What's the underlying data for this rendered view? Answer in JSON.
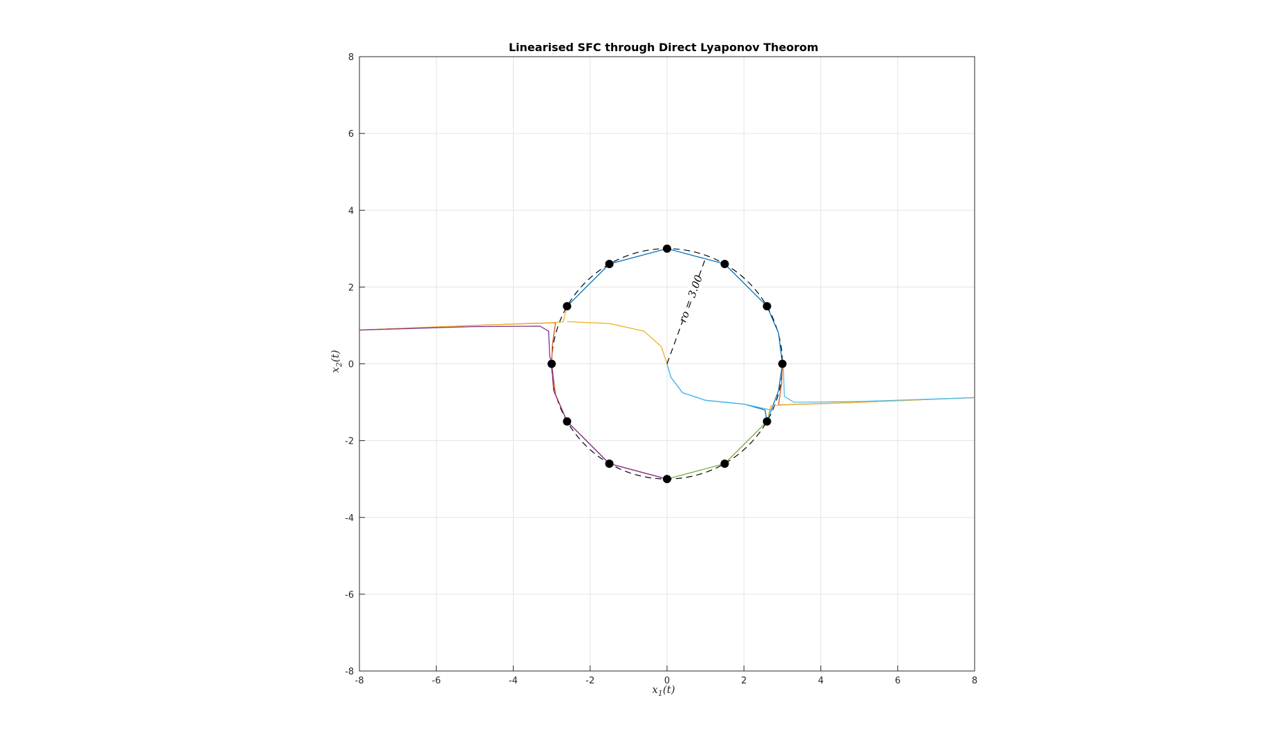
{
  "chart_data": {
    "type": "line",
    "title": "Linearised SFC through Direct Lyaponov Theorom",
    "xlabel": "x_1(t)",
    "ylabel": "x_2(t)",
    "xlim": [
      -8,
      8
    ],
    "ylim": [
      -8,
      8
    ],
    "xticks": [
      "-8",
      "-6",
      "-4",
      "-2",
      "0",
      "2",
      "4",
      "6",
      "8"
    ],
    "yticks": [
      "-8",
      "-6",
      "-4",
      "-2",
      "0",
      "2",
      "4",
      "6",
      "8"
    ],
    "grid": true,
    "circle": {
      "radius": 3.0,
      "style": "dashed",
      "color": "#000000"
    },
    "radius_annotation": "ro = 3.00",
    "markers": {
      "color": "#000000",
      "points": [
        [
          3.0,
          0.0
        ],
        [
          2.6,
          1.5
        ],
        [
          1.5,
          2.6
        ],
        [
          0.0,
          3.0
        ],
        [
          -1.5,
          2.6
        ],
        [
          -2.6,
          1.5
        ],
        [
          -3.0,
          0.0
        ],
        [
          -2.6,
          -1.5
        ],
        [
          -1.5,
          -2.6
        ],
        [
          0.0,
          -3.0
        ],
        [
          1.5,
          -2.6
        ],
        [
          2.6,
          -1.5
        ]
      ]
    },
    "series": [
      {
        "color": "#0072BD",
        "points": [
          [
            2.6,
            1.5
          ],
          [
            2.9,
            0.8
          ],
          [
            3.0,
            0.0
          ],
          [
            2.9,
            -0.7
          ],
          [
            2.6,
            -1.5
          ],
          [
            2.55,
            -1.2
          ],
          [
            2.0,
            -1.05
          ],
          [
            1.0,
            -0.95
          ],
          [
            0.4,
            -0.75
          ],
          [
            0.1,
            -0.35
          ],
          [
            0.0,
            0.0
          ]
        ]
      },
      {
        "color": "#0072BD",
        "points": [
          [
            -2.6,
            1.5
          ],
          [
            -1.5,
            2.6
          ],
          [
            0.0,
            3.0
          ],
          [
            1.5,
            2.6
          ],
          [
            2.6,
            1.5
          ]
        ]
      },
      {
        "color": "#D95319",
        "points": [
          [
            -8.0,
            0.88
          ],
          [
            -5.0,
            1.0
          ],
          [
            -3.6,
            1.05
          ],
          [
            -2.9,
            1.07
          ],
          [
            -2.98,
            0.5
          ],
          [
            -3.0,
            0.0
          ],
          [
            -2.9,
            -0.8
          ],
          [
            -2.6,
            -1.5
          ],
          [
            -1.5,
            -2.6
          ],
          [
            0.0,
            -3.0
          ]
        ]
      },
      {
        "color": "#D95319",
        "points": [
          [
            8.0,
            -0.88
          ],
          [
            5.0,
            -1.0
          ],
          [
            3.6,
            -1.05
          ],
          [
            2.9,
            -1.07
          ],
          [
            2.98,
            -0.5
          ],
          [
            3.0,
            0.0
          ]
        ]
      },
      {
        "color": "#EDB120",
        "points": [
          [
            -8.0,
            0.88
          ],
          [
            -5.0,
            1.0
          ],
          [
            -3.2,
            1.06
          ],
          [
            -2.7,
            1.09
          ],
          [
            -2.6,
            1.5
          ]
        ]
      },
      {
        "color": "#EDB120",
        "points": [
          [
            -2.6,
            1.1
          ],
          [
            -1.5,
            1.05
          ],
          [
            -0.6,
            0.85
          ],
          [
            -0.15,
            0.45
          ],
          [
            0.0,
            0.0
          ]
        ]
      },
      {
        "color": "#EDB120",
        "points": [
          [
            8.0,
            -0.88
          ],
          [
            5.0,
            -1.0
          ],
          [
            3.2,
            -1.06
          ],
          [
            2.7,
            -1.09
          ],
          [
            2.6,
            -1.5
          ]
        ]
      },
      {
        "color": "#7E2F8E",
        "points": [
          [
            -8.0,
            0.88
          ],
          [
            -5.0,
            0.97
          ],
          [
            -3.3,
            0.98
          ],
          [
            -3.08,
            0.85
          ],
          [
            -3.05,
            0.2
          ],
          [
            -3.0,
            0.0
          ],
          [
            -2.95,
            -0.7
          ],
          [
            -2.6,
            -1.5
          ],
          [
            -1.5,
            -2.6
          ],
          [
            0.0,
            -3.0
          ]
        ]
      },
      {
        "color": "#4DBEEE",
        "points": [
          [
            8.0,
            -0.88
          ],
          [
            5.0,
            -0.98
          ],
          [
            3.3,
            -1.0
          ],
          [
            3.05,
            -0.85
          ],
          [
            3.03,
            -0.2
          ],
          [
            3.0,
            0.0
          ]
        ]
      },
      {
        "color": "#4DBEEE",
        "points": [
          [
            2.6,
            -1.5
          ],
          [
            2.7,
            -1.2
          ],
          [
            2.0,
            -1.05
          ],
          [
            1.0,
            -0.95
          ],
          [
            0.4,
            -0.75
          ],
          [
            0.1,
            -0.35
          ],
          [
            0.0,
            0.0
          ]
        ]
      },
      {
        "color": "#77AC30",
        "points": [
          [
            0.0,
            -3.0
          ],
          [
            1.5,
            -2.6
          ],
          [
            2.6,
            -1.5
          ]
        ]
      }
    ]
  }
}
